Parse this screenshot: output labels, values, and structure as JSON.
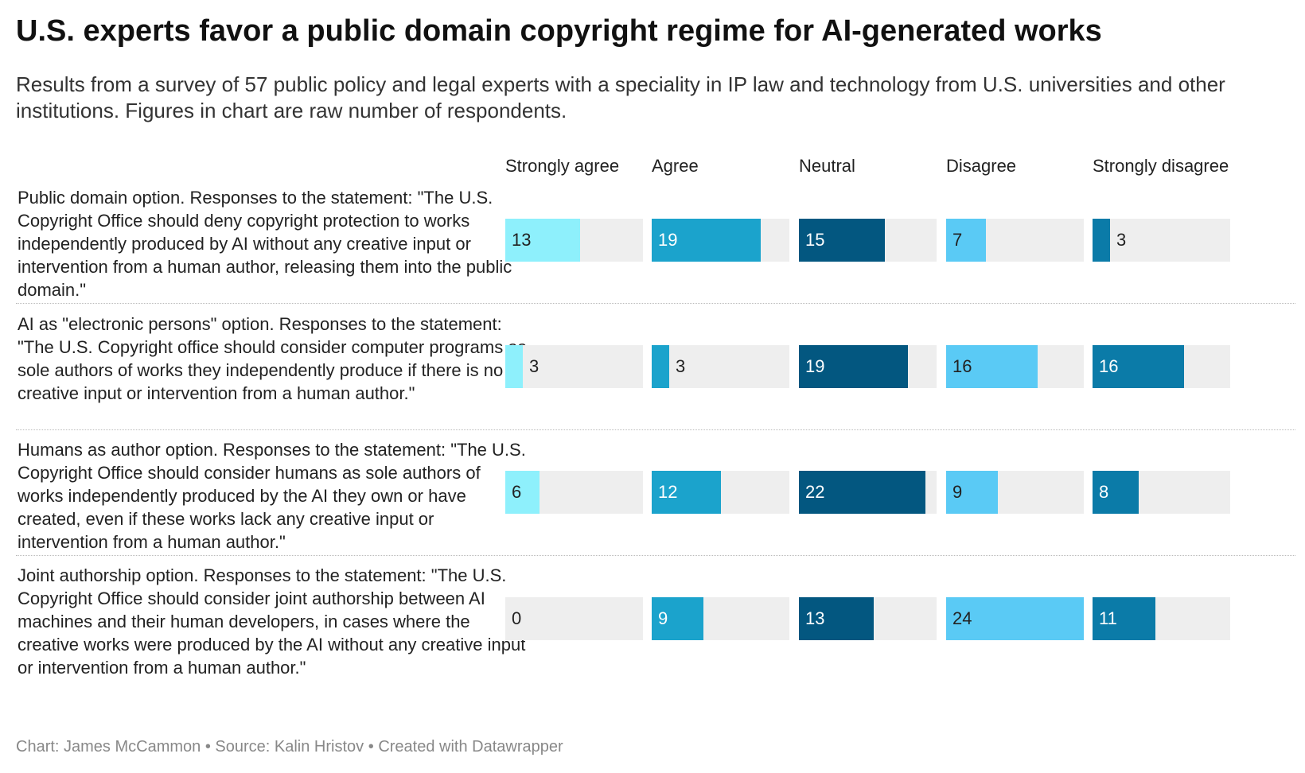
{
  "title": "U.S. experts favor a public domain copyright regime for AI-generated works",
  "subtitle": "Results from a survey of 57 public policy and legal experts with a speciality in IP law and technology from U.S. universities and other institutions. Figures in chart are raw number of respondents.",
  "footer": {
    "chart_by": "Chart: James McCammon",
    "source": "Source: Kalin Hristov",
    "created_with": "Created with Datawrapper",
    "separator": "•"
  },
  "colors": {
    "track": "#eeeeee",
    "series": [
      "#8ef0fc",
      "#1ba3cc",
      "#035780",
      "#5acaf5",
      "#0b7ba8"
    ],
    "label_on_bar": [
      "#222222",
      "#ffffff",
      "#ffffff",
      "#222222",
      "#ffffff"
    ]
  },
  "chart_data": {
    "type": "bar",
    "max_value": 24,
    "columns": [
      "Strongly agree",
      "Agree",
      "Neutral",
      "Disagree",
      "Strongly disagree"
    ],
    "rows": [
      {
        "label": "Public domain option. Responses to the statement: \"The U.S. Copyright Office should deny copyright protection to works independently produced by AI without any creative input or intervention from a human author, releasing them into the public domain.\"",
        "values": [
          13,
          19,
          15,
          7,
          3
        ]
      },
      {
        "label": "AI as \"electronic persons\" option. Responses to the statement: \"The U.S. Copyright office should consider computer programs as sole authors of works they independently produce if there is no creative input or intervention from a human author.\"",
        "values": [
          3,
          3,
          19,
          16,
          16
        ]
      },
      {
        "label": "Humans as author option. Responses to the statement: \"The U.S. Copyright Office should consider humans as sole authors of works independently produced by the AI they own or have created, even if these works lack any creative input or intervention from a human author.\"",
        "values": [
          6,
          12,
          22,
          9,
          8
        ]
      },
      {
        "label": "Joint authorship option. Responses to the statement: \"The U.S. Copyright Office should consider joint authorship between AI machines and their human developers, in cases where the creative works were produced by the AI without any creative input or intervention from a human author.\"",
        "values": [
          0,
          9,
          13,
          24,
          11
        ]
      }
    ]
  }
}
